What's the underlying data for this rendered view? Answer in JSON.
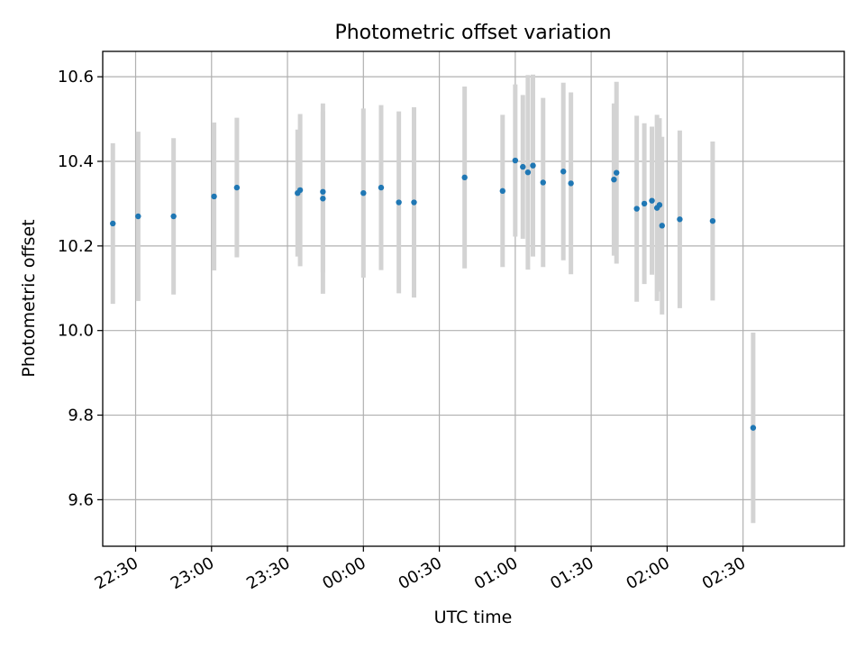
{
  "chart_data": {
    "type": "scatter",
    "title": "Photometric offset variation",
    "xlabel": "UTC time",
    "ylabel": "Photometric offset",
    "x_ticks": [
      "22:30",
      "23:00",
      "23:30",
      "00:00",
      "00:30",
      "01:00",
      "01:30",
      "02:00",
      "02:30"
    ],
    "y_ticks": [
      "9.6",
      "9.8",
      "10.0",
      "10.2",
      "10.4",
      "10.6"
    ],
    "xlim": [
      "22:17",
      "03:10"
    ],
    "ylim": [
      9.49,
      10.66
    ],
    "grid": true,
    "colors": {
      "point": "#1f77b4",
      "errorbar": "#d3d3d3",
      "grid": "#b0b0b0",
      "axes": "#000000"
    },
    "series": [
      {
        "x": [
          "22:21",
          "22:31",
          "22:45",
          "23:01",
          "23:10",
          "23:34",
          "23:35",
          "23:44",
          "23:44",
          "24:00",
          "24:07",
          "24:14",
          "24:20",
          "24:40",
          "24:55",
          "25:00",
          "25:03",
          "25:05",
          "25:07",
          "25:11",
          "25:19",
          "25:22",
          "25:39",
          "25:40",
          "25:48",
          "25:51",
          "25:54",
          "25:56",
          "25:57",
          "25:58",
          "26:05",
          "26:18",
          "26:34"
        ],
        "y": [
          10.253,
          10.27,
          10.27,
          10.317,
          10.338,
          10.325,
          10.332,
          10.328,
          10.312,
          10.325,
          10.338,
          10.303,
          10.303,
          10.362,
          10.33,
          10.402,
          10.387,
          10.374,
          10.39,
          10.35,
          10.376,
          10.348,
          10.357,
          10.373,
          10.288,
          10.3,
          10.307,
          10.29,
          10.297,
          10.248,
          10.263,
          10.259,
          9.77
        ],
        "yerr": [
          0.19,
          0.2,
          0.185,
          0.175,
          0.165,
          0.15,
          0.18,
          0.19,
          0.225,
          0.2,
          0.195,
          0.215,
          0.225,
          0.215,
          0.18,
          0.18,
          0.17,
          0.23,
          0.215,
          0.2,
          0.21,
          0.215,
          0.18,
          0.215,
          0.22,
          0.19,
          0.175,
          0.22,
          0.205,
          0.21,
          0.21,
          0.188,
          0.225
        ]
      }
    ]
  }
}
